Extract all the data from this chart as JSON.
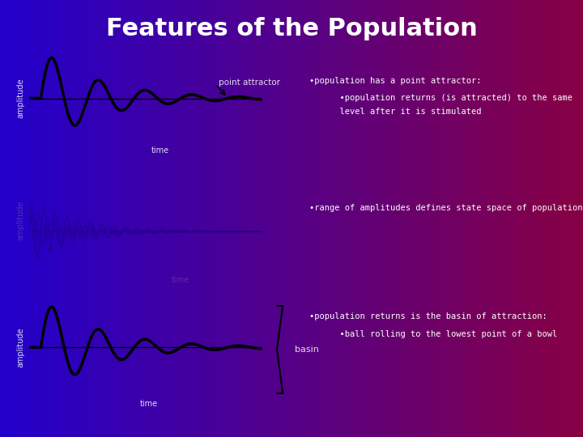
{
  "title": "Features of the Population",
  "title_color": "#ffffff",
  "title_fontsize": 22,
  "text_color_white": "#ffffff",
  "text_color_dim": "#6644aa",
  "curve_color": "#000000",
  "curve2_color": "#220088",
  "bullet1_main": "•population has a point attractor:",
  "bullet1_sub1": "      •population returns (is attracted) to the same",
  "bullet1_sub2": "      level after it is stimulated",
  "bullet2": "•range of amplitudes defines state space of population",
  "bullet3_main": "•population returns is the basin of attraction:",
  "bullet3_sub": "      •ball rolling to the lowest point of a bowl",
  "point_attractor_label": "point attractor",
  "time_label": "time",
  "amplitude_label": "amplitude",
  "basin_label": "basin"
}
